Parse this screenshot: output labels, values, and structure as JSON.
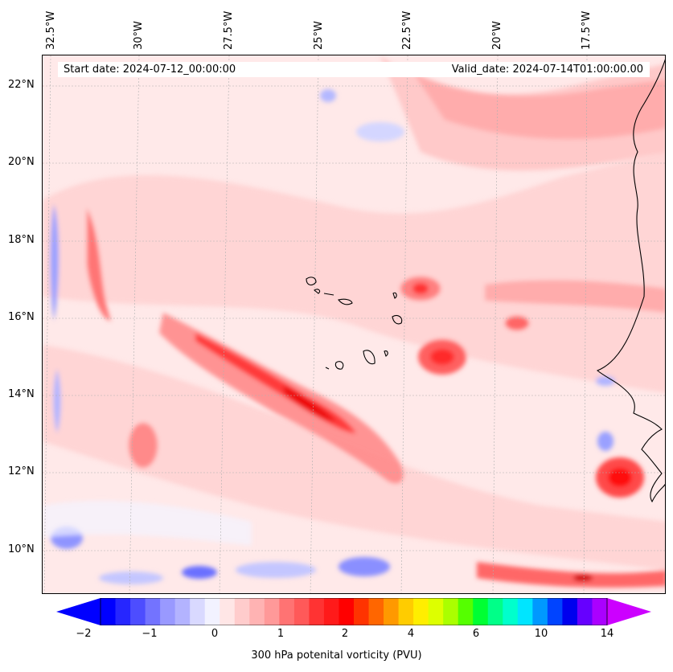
{
  "map": {
    "lon_labels": [
      "32.5°W",
      "30°W",
      "27.5°W",
      "25°W",
      "22.5°W",
      "20°W",
      "17.5°W"
    ],
    "lat_labels": [
      "22°N",
      "20°N",
      "18°N",
      "16°N",
      "14°N",
      "12°N",
      "10°N"
    ],
    "start_date": "Start date: 2024-07-12_00:00:00",
    "valid_date": "Valid_date: 2024-07-14T01:00:00.00",
    "variable": "300 hPa potential vorticity",
    "background_color": "#ffe9e9",
    "coastline_color": "#000000",
    "gridline_style": "dashed-gray"
  },
  "colorbar": {
    "label": "300 hPa potenital vorticity (PVU)",
    "tick_labels": [
      "−2",
      "−1",
      "0",
      "1",
      "2",
      "4",
      "6",
      "10",
      "14"
    ],
    "colors": [
      "#0000ff",
      "#2626ff",
      "#4d4dff",
      "#7373ff",
      "#9999ff",
      "#b3b3ff",
      "#d9d9ff",
      "#f2f2ff",
      "#ffe6e6",
      "#ffcccc",
      "#ffb3b3",
      "#ff9999",
      "#ff7373",
      "#ff5959",
      "#ff3333",
      "#ff1a1a",
      "#ff0000",
      "#ff3300",
      "#ff6600",
      "#ff9900",
      "#ffcc00",
      "#ffee00",
      "#ddff00",
      "#aaff00",
      "#55ff00",
      "#00ff33",
      "#00ff88",
      "#00ffcc",
      "#00e5ff",
      "#0099ff",
      "#0044ff",
      "#0000ee",
      "#6600ff",
      "#aa00ff"
    ],
    "extend": "both",
    "min_color": "#0000ff",
    "max_color": "#cc00ff"
  }
}
